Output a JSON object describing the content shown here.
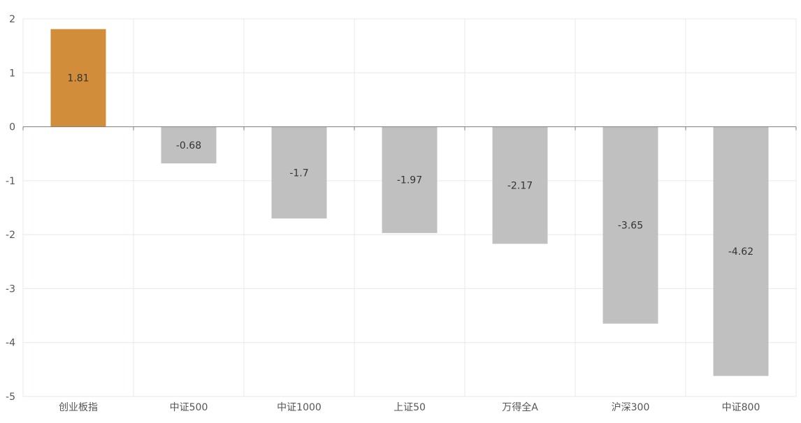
{
  "chart_data": {
    "type": "bar",
    "title": "",
    "xlabel": "",
    "ylabel": "",
    "categories": [
      "创业板指",
      "中证500",
      "中证1000",
      "上证50",
      "万得全A",
      "沪深300",
      "中证800"
    ],
    "values": [
      1.81,
      -0.68,
      -1.7,
      -1.97,
      -2.17,
      -3.65,
      -4.62
    ],
    "data_labels": [
      "1.81",
      "-0.68",
      "-1.7",
      "-1.97",
      "-2.17",
      "-3.65",
      "-4.62"
    ],
    "ylim": [
      -5,
      2
    ],
    "yticks": [
      2,
      1,
      0,
      -1,
      -2,
      -3,
      -4,
      -5
    ],
    "ytick_labels": [
      "2",
      "1",
      "0",
      "-1",
      "-2",
      "-3",
      "-4",
      "-5"
    ],
    "grid": true,
    "legend": "none",
    "colors": {
      "positive": "#d18d3a",
      "negative": "#c0c0c0"
    }
  }
}
